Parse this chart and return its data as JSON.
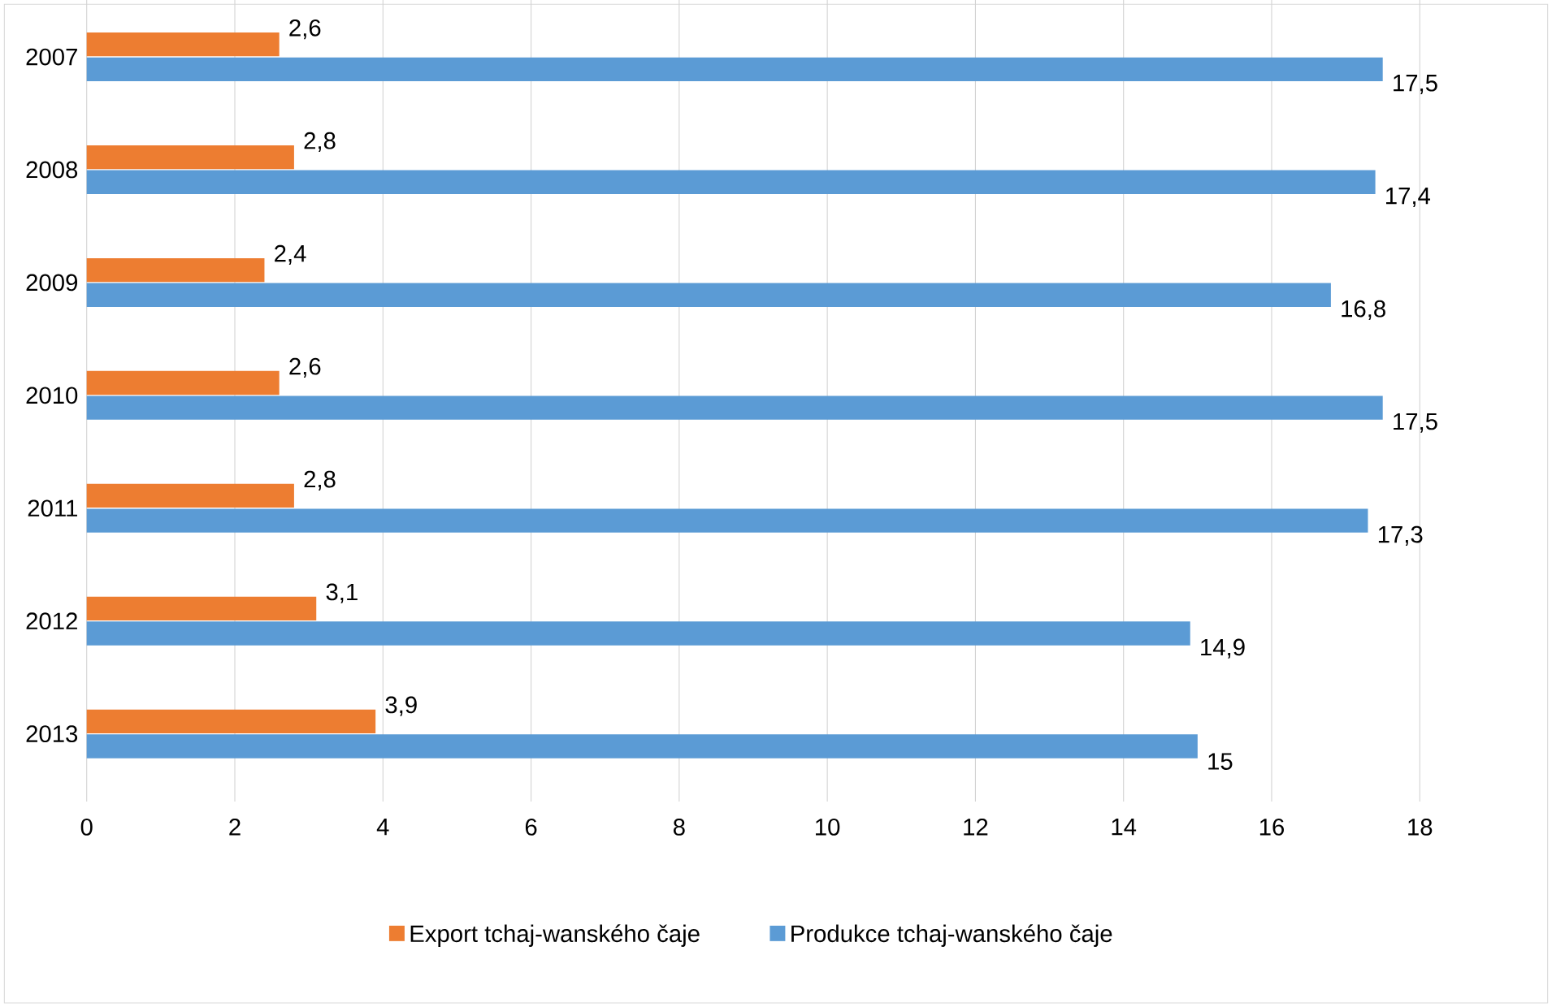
{
  "chart_data": {
    "type": "bar",
    "orientation": "horizontal",
    "categories": [
      "2007",
      "2008",
      "2009",
      "2010",
      "2011",
      "2012",
      "2013"
    ],
    "series": [
      {
        "name": "Export tchaj-wanského čaje",
        "color": "#ed7d31",
        "values": [
          2.6,
          2.8,
          2.4,
          2.6,
          2.8,
          3.1,
          3.9
        ],
        "value_labels": [
          "2,6",
          "2,8",
          "2,4",
          "2,6",
          "2,8",
          "3,1",
          "3,9"
        ]
      },
      {
        "name": "Produkce tchaj-wanského čaje",
        "color": "#5b9bd5",
        "values": [
          17.5,
          17.4,
          16.8,
          17.5,
          17.3,
          14.9,
          15
        ],
        "value_labels": [
          "17,5",
          "17,4",
          "16,8",
          "17,5",
          "17,3",
          "14,9",
          "15"
        ]
      }
    ],
    "xlim": [
      0,
      18
    ],
    "xticks": [
      0,
      2,
      4,
      6,
      8,
      10,
      12,
      14,
      16,
      18
    ],
    "grid": "x",
    "legend": "bottom"
  }
}
